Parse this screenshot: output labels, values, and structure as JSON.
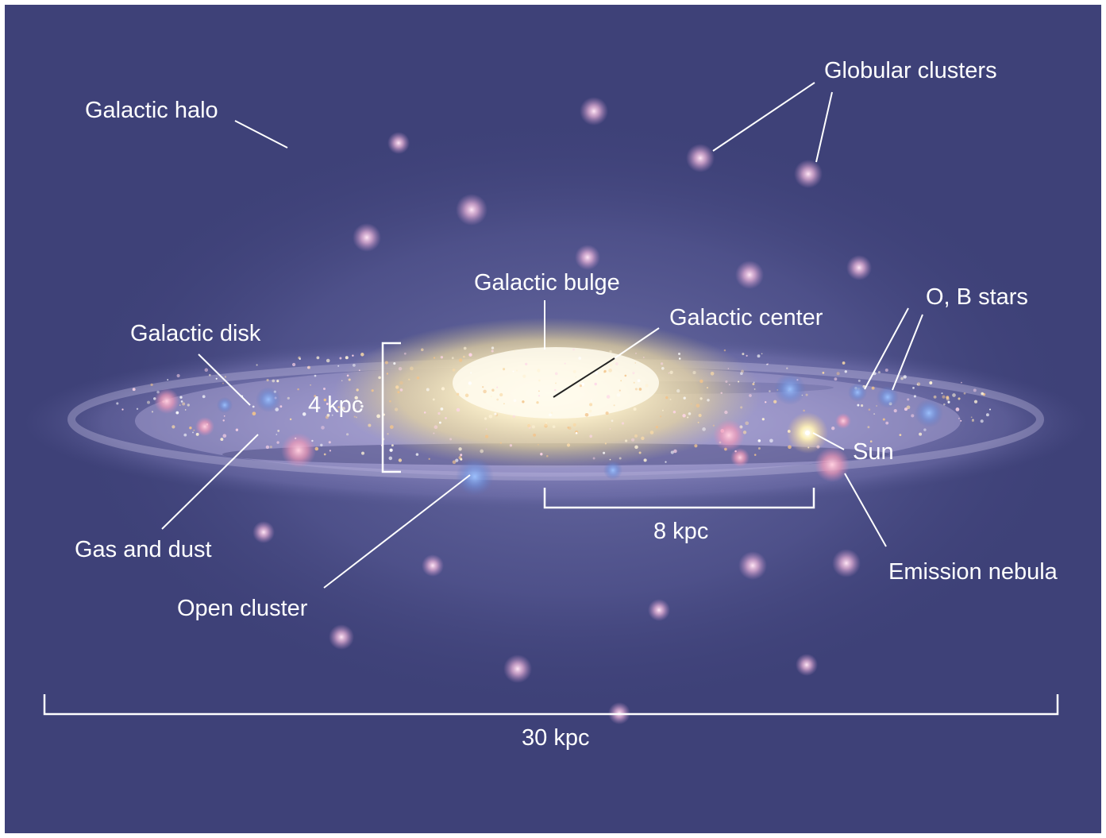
{
  "colors": {
    "background": "#3e4178",
    "halo": "#6a6ca6",
    "disk": "#8a88bf",
    "bulge_core": "#fff6dc",
    "bulge_mid": "#f1dd9d",
    "leader_line": "#ffffff",
    "center_line": "#222222",
    "cluster": "#f7c6ea",
    "blue_star": "#6f9ee6",
    "nebula": "#f4a6c0",
    "sun": "#fff3b8"
  },
  "labels": {
    "galactic_halo": "Galactic halo",
    "globular_clusters": "Globular clusters",
    "galactic_bulge": "Galactic bulge",
    "galactic_center": "Galactic center",
    "ob_stars": "O, B stars",
    "galactic_disk": "Galactic disk",
    "gas_and_dust": "Gas and dust",
    "open_cluster": "Open cluster",
    "sun": "Sun",
    "emission_nebula": "Emission nebula"
  },
  "scales": {
    "disk_thickness": "4 kpc",
    "sun_to_center": "8 kpc",
    "disk_diameter": "30 kpc"
  }
}
